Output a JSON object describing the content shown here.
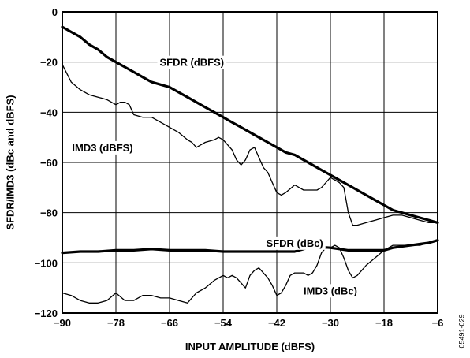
{
  "figure_id": "05491-029",
  "chart_data": {
    "type": "line",
    "xlabel": "INPUT AMPLITUDE (dBFS)",
    "ylabel": "SFDR/IMD3 (dBc and dBFS)",
    "xlim": [
      -90,
      -6
    ],
    "ylim": [
      -120,
      0
    ],
    "x_ticks": [
      -90,
      -78,
      -66,
      -54,
      -42,
      -30,
      -18,
      -6
    ],
    "y_ticks": [
      0,
      -20,
      -40,
      -60,
      -80,
      -100,
      -120
    ],
    "x_tick_labels": [
      "−90",
      "−78",
      "−66",
      "−54",
      "−42",
      "−30",
      "−18",
      "−6"
    ],
    "y_tick_labels": [
      "0",
      "−20",
      "−40",
      "−60",
      "−80",
      "−100",
      "−120"
    ],
    "grid": true,
    "series": [
      {
        "name": "SFDR (dBFS)",
        "weight": "thick",
        "label_pos": [
          -61,
          -20
        ],
        "x": [
          -90,
          -88,
          -86,
          -84,
          -82,
          -80,
          -78,
          -76,
          -74,
          -72,
          -70,
          -68,
          -66,
          -64,
          -62,
          -60,
          -58,
          -56,
          -54,
          -52,
          -50,
          -48,
          -46,
          -44,
          -42,
          -40,
          -38,
          -36,
          -34,
          -32,
          -30,
          -28,
          -26,
          -24,
          -22,
          -20,
          -18,
          -16,
          -14,
          -12,
          -10,
          -8,
          -6
        ],
        "y": [
          -6,
          -8,
          -10,
          -13,
          -15,
          -18,
          -20,
          -22,
          -24,
          -26,
          -28,
          -29,
          -30,
          -32,
          -34,
          -36,
          -38,
          -40,
          -42,
          -44,
          -46,
          -48,
          -50,
          -52,
          -54,
          -56,
          -57,
          -59,
          -61,
          -63,
          -65,
          -67,
          -69,
          -71,
          -73,
          -75,
          -77,
          -79,
          -80,
          -81,
          -82,
          -83,
          -84
        ]
      },
      {
        "name": "IMD3 (dBFS)",
        "weight": "thin",
        "label_pos": [
          -81,
          -54
        ],
        "x": [
          -90,
          -88,
          -86,
          -84,
          -82,
          -80,
          -78,
          -77,
          -76,
          -75,
          -74,
          -72,
          -70,
          -68,
          -66,
          -64,
          -62,
          -61,
          -60,
          -59,
          -58,
          -56,
          -55,
          -54,
          -53,
          -52,
          -51,
          -50,
          -49,
          -48,
          -47,
          -46,
          -45,
          -44,
          -43,
          -42,
          -41,
          -40,
          -38,
          -36,
          -34,
          -33,
          -32,
          -31,
          -30,
          -29,
          -28,
          -27,
          -26,
          -25,
          -24,
          -22,
          -20,
          -18,
          -16,
          -14,
          -12,
          -10,
          -8,
          -6
        ],
        "y": [
          -21,
          -28,
          -31,
          -33,
          -34,
          -35,
          -37,
          -36,
          -36,
          -37,
          -41,
          -42,
          -42,
          -44,
          -46,
          -48,
          -51,
          -52,
          -54,
          -53,
          -52,
          -51,
          -50,
          -51,
          -53,
          -55,
          -59,
          -61,
          -59,
          -55,
          -54,
          -58,
          -62,
          -64,
          -68,
          -72,
          -73,
          -72,
          -69,
          -71,
          -71,
          -71,
          -70,
          -68,
          -66,
          -67,
          -68,
          -70,
          -80,
          -85,
          -85,
          -84,
          -83,
          -82,
          -81,
          -81,
          -82,
          -83,
          -84,
          -84
        ]
      },
      {
        "name": "SFDR (dBc)",
        "weight": "thick",
        "label_pos": [
          -38,
          -92
        ],
        "x": [
          -90,
          -86,
          -82,
          -78,
          -74,
          -70,
          -66,
          -62,
          -58,
          -54,
          -50,
          -46,
          -42,
          -38,
          -34,
          -30,
          -28,
          -26,
          -24,
          -22,
          -20,
          -18,
          -16,
          -14,
          -12,
          -10,
          -8,
          -6
        ],
        "y": [
          -96,
          -95.5,
          -95.5,
          -95,
          -95,
          -94.5,
          -95,
          -95,
          -95,
          -95.5,
          -95.5,
          -95.5,
          -95.5,
          -95.5,
          -93.5,
          -94,
          -94.5,
          -95,
          -95,
          -95,
          -95,
          -95,
          -94,
          -93.5,
          -93,
          -92.5,
          -92,
          -91
        ]
      },
      {
        "name": "IMD3 (dBc)",
        "weight": "thin",
        "label_pos": [
          -30,
          -111
        ],
        "x": [
          -90,
          -88,
          -86,
          -84,
          -82,
          -80,
          -78,
          -76,
          -74,
          -72,
          -70,
          -68,
          -66,
          -64,
          -62,
          -60,
          -58,
          -56,
          -54,
          -53,
          -52,
          -51,
          -50,
          -49,
          -48,
          -47,
          -46,
          -45,
          -44,
          -43,
          -42,
          -41,
          -40,
          -39,
          -38,
          -37,
          -36,
          -35,
          -34,
          -33,
          -32,
          -31,
          -30,
          -29,
          -28,
          -27,
          -26,
          -25,
          -24,
          -23,
          -22,
          -20,
          -18,
          -16,
          -14,
          -12,
          -10,
          -8,
          -6
        ],
        "y": [
          -112,
          -113,
          -115,
          -116,
          -116,
          -115,
          -112,
          -115,
          -115,
          -113,
          -113,
          -114,
          -114,
          -115,
          -116,
          -112,
          -110,
          -107,
          -105,
          -106,
          -105,
          -106,
          -108,
          -110,
          -105,
          -103,
          -102,
          -104,
          -106,
          -109,
          -113,
          -112,
          -109,
          -105,
          -104,
          -104,
          -104,
          -105,
          -104,
          -101,
          -96,
          -94,
          -94,
          -93,
          -94,
          -98,
          -103,
          -106,
          -105,
          -103,
          -101,
          -98,
          -95,
          -93,
          -93,
          -93,
          -93,
          -92,
          -91
        ]
      }
    ]
  }
}
